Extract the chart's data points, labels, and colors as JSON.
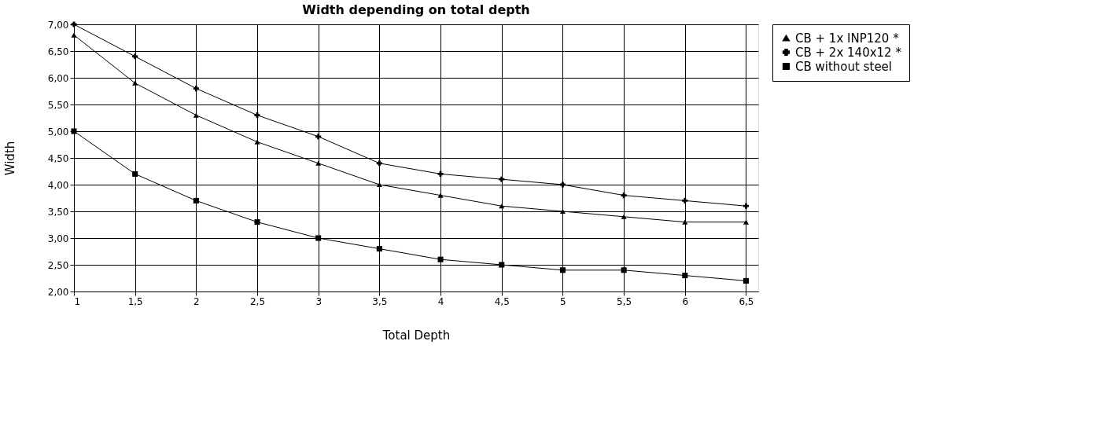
{
  "chart_data": {
    "type": "line",
    "title": "Width depending on total depth",
    "xlabel": "Total Depth",
    "ylabel": "Width",
    "x": [
      1,
      1.5,
      2,
      2.5,
      3,
      3.5,
      4,
      4.5,
      5,
      5.5,
      6,
      6.5
    ],
    "series": [
      {
        "name": "CB + 1x INP120 *",
        "color": "#000000",
        "marker": "triangle",
        "values": [
          6.8,
          5.9,
          5.3,
          4.8,
          4.4,
          4.0,
          3.8,
          3.6,
          3.5,
          3.4,
          3.3,
          3.3
        ]
      },
      {
        "name": "CB + 2x 140x12 *",
        "color": "#000000",
        "marker": "cross",
        "values": [
          7.0,
          6.4,
          5.8,
          5.3,
          4.9,
          4.4,
          4.2,
          4.1,
          4.0,
          3.8,
          3.7,
          3.6
        ]
      },
      {
        "name": "CB without steel",
        "color": "#000000",
        "marker": "square",
        "values": [
          5.0,
          4.2,
          3.7,
          3.3,
          3.0,
          2.8,
          2.6,
          2.5,
          2.4,
          2.4,
          2.3,
          2.2
        ]
      }
    ],
    "xlim": [
      1,
      6.6
    ],
    "xticks": [
      1,
      {
        "value": 1.5,
        "label": "1,5"
      },
      2,
      {
        "value": 2.5,
        "label": "2,5"
      },
      3,
      {
        "value": 3.5,
        "label": "3,5"
      },
      4,
      {
        "value": 4.5,
        "label": "4,5"
      },
      5,
      {
        "value": 5.5,
        "label": "5,5"
      },
      6,
      {
        "value": 6.5,
        "label": "6,5"
      }
    ],
    "ylim": [
      2,
      7
    ],
    "yticks": [
      {
        "value": 2,
        "label": "2,00"
      },
      {
        "value": 2.5,
        "label": "2,50"
      },
      {
        "value": 3,
        "label": "3,00"
      },
      {
        "value": 3.5,
        "label": "3,50"
      },
      {
        "value": 4,
        "label": "4,00"
      },
      {
        "value": 4.5,
        "label": "4,50"
      },
      {
        "value": 5,
        "label": "5,00"
      },
      {
        "value": 5.5,
        "label": "5,50"
      },
      {
        "value": 6,
        "label": "6,00"
      },
      {
        "value": 6.5,
        "label": "6,50"
      },
      {
        "value": 7,
        "label": "7,00"
      }
    ],
    "grid": true,
    "legend": "right",
    "line_style": "solid"
  }
}
